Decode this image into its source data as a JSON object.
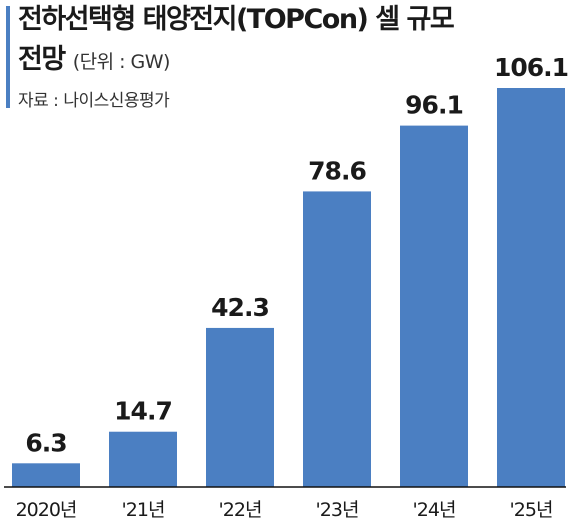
{
  "title": {
    "line1": "전하선택형 태양전지(TOPCon) 셀 규모",
    "line2": "전망",
    "unit": "(단위 : GW)"
  },
  "source": "자료 : 나이스신용평가",
  "colors": {
    "bar": "#4b7fc2",
    "accent": "#4b7fc2",
    "text": "#1a1a1a",
    "baseline": "#111111"
  },
  "chart_data": {
    "type": "bar",
    "categories": [
      "2020년",
      "'21년",
      "'22년",
      "'23년",
      "'24년",
      "'25년"
    ],
    "values": [
      6.3,
      14.7,
      42.3,
      78.6,
      96.1,
      106.1
    ],
    "value_labels": [
      "6.3",
      "14.7",
      "42.3",
      "78.6",
      "96.1",
      "106.1"
    ],
    "title": "전하선택형 태양전지(TOPCon) 셀 규모 전망",
    "xlabel": "",
    "ylabel": "",
    "ylim": [
      0,
      106.1
    ],
    "grid": false,
    "legend": "none"
  }
}
